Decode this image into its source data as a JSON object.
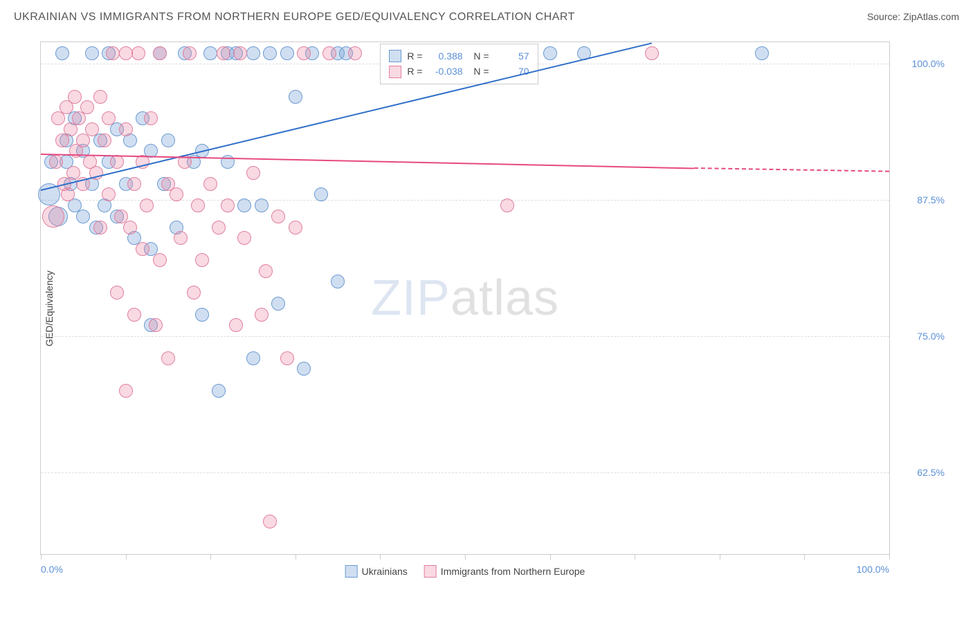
{
  "header": {
    "title": "UKRAINIAN VS IMMIGRANTS FROM NORTHERN EUROPE GED/EQUIVALENCY CORRELATION CHART",
    "source": "Source: ZipAtlas.com"
  },
  "chart": {
    "type": "scatter",
    "y_axis_title": "GED/Equivalency",
    "xlim": [
      0,
      100
    ],
    "ylim": [
      55,
      102
    ],
    "x_ticks": [
      0,
      10,
      20,
      30,
      40,
      50,
      60,
      70,
      80,
      90,
      100
    ],
    "x_tick_labels": {
      "min": "0.0%",
      "max": "100.0%"
    },
    "y_ticks": [
      {
        "value": 62.5,
        "label": "62.5%"
      },
      {
        "value": 75.0,
        "label": "75.0%"
      },
      {
        "value": 87.5,
        "label": "87.5%"
      },
      {
        "value": 100.0,
        "label": "100.0%"
      }
    ],
    "background_color": "#ffffff",
    "grid_color": "#dddddd",
    "border_color": "#cccccc",
    "axis_label_color": "#5b8fd6",
    "watermark": {
      "zip": "ZIP",
      "atlas": "atlas"
    },
    "series": [
      {
        "name": "Ukrainians",
        "fill": "rgba(120,160,215,0.35)",
        "stroke": "#6b9bd1",
        "stroke_width": 1,
        "marker_radius": 10,
        "trend": {
          "color": "#2f6fc9",
          "x1": 0,
          "y1": 88.5,
          "x2": 72,
          "y2": 102,
          "dash_x2": 72,
          "dash_y2": 102
        },
        "stats": {
          "R": "0.388",
          "N": "57"
        },
        "points": [
          {
            "x": 1,
            "y": 88,
            "r": 16
          },
          {
            "x": 1.2,
            "y": 91
          },
          {
            "x": 2,
            "y": 86,
            "r": 14
          },
          {
            "x": 2.5,
            "y": 101
          },
          {
            "x": 3,
            "y": 93
          },
          {
            "x": 3,
            "y": 91
          },
          {
            "x": 3.5,
            "y": 89
          },
          {
            "x": 4,
            "y": 87
          },
          {
            "x": 4,
            "y": 95
          },
          {
            "x": 5,
            "y": 86
          },
          {
            "x": 5,
            "y": 92
          },
          {
            "x": 6,
            "y": 101
          },
          {
            "x": 6,
            "y": 89
          },
          {
            "x": 6.5,
            "y": 85
          },
          {
            "x": 7,
            "y": 93
          },
          {
            "x": 7.5,
            "y": 87
          },
          {
            "x": 8,
            "y": 101
          },
          {
            "x": 8,
            "y": 91
          },
          {
            "x": 9,
            "y": 94
          },
          {
            "x": 9,
            "y": 86
          },
          {
            "x": 10,
            "y": 89
          },
          {
            "x": 10.5,
            "y": 93
          },
          {
            "x": 11,
            "y": 84
          },
          {
            "x": 12,
            "y": 95
          },
          {
            "x": 13,
            "y": 92
          },
          {
            "x": 13,
            "y": 76
          },
          {
            "x": 13,
            "y": 83
          },
          {
            "x": 14,
            "y": 101
          },
          {
            "x": 14.5,
            "y": 89
          },
          {
            "x": 15,
            "y": 93
          },
          {
            "x": 16,
            "y": 85
          },
          {
            "x": 17,
            "y": 101
          },
          {
            "x": 18,
            "y": 91
          },
          {
            "x": 19,
            "y": 92
          },
          {
            "x": 19,
            "y": 77
          },
          {
            "x": 20,
            "y": 101
          },
          {
            "x": 21,
            "y": 70
          },
          {
            "x": 22,
            "y": 91
          },
          {
            "x": 22,
            "y": 101
          },
          {
            "x": 23,
            "y": 101
          },
          {
            "x": 24,
            "y": 87
          },
          {
            "x": 25,
            "y": 101
          },
          {
            "x": 25,
            "y": 73
          },
          {
            "x": 26,
            "y": 87
          },
          {
            "x": 27,
            "y": 101
          },
          {
            "x": 28,
            "y": 78
          },
          {
            "x": 29,
            "y": 101
          },
          {
            "x": 30,
            "y": 97
          },
          {
            "x": 31,
            "y": 72
          },
          {
            "x": 32,
            "y": 101
          },
          {
            "x": 33,
            "y": 88
          },
          {
            "x": 35,
            "y": 80
          },
          {
            "x": 35,
            "y": 101
          },
          {
            "x": 36,
            "y": 101
          },
          {
            "x": 60,
            "y": 101
          },
          {
            "x": 64,
            "y": 101
          },
          {
            "x": 85,
            "y": 101
          }
        ]
      },
      {
        "name": "Immigrants from Northern Europe",
        "fill": "rgba(235,130,160,0.30)",
        "stroke": "#e07fa0",
        "stroke_width": 1,
        "marker_radius": 10,
        "trend": {
          "color": "#e64980",
          "x1": 0,
          "y1": 91.8,
          "x2": 77,
          "y2": 90.5,
          "dash_x2": 100,
          "dash_y2": 90.2
        },
        "stats": {
          "R": "-0.038",
          "N": "70"
        },
        "points": [
          {
            "x": 1.5,
            "y": 86,
            "r": 16
          },
          {
            "x": 1.8,
            "y": 91
          },
          {
            "x": 2,
            "y": 95
          },
          {
            "x": 2.5,
            "y": 93
          },
          {
            "x": 2.8,
            "y": 89
          },
          {
            "x": 3,
            "y": 96
          },
          {
            "x": 3.2,
            "y": 88
          },
          {
            "x": 3.5,
            "y": 94
          },
          {
            "x": 3.8,
            "y": 90
          },
          {
            "x": 4,
            "y": 97
          },
          {
            "x": 4.2,
            "y": 92
          },
          {
            "x": 4.5,
            "y": 95
          },
          {
            "x": 5,
            "y": 93
          },
          {
            "x": 5,
            "y": 89
          },
          {
            "x": 5.5,
            "y": 96
          },
          {
            "x": 5.8,
            "y": 91
          },
          {
            "x": 6,
            "y": 94
          },
          {
            "x": 6.5,
            "y": 90
          },
          {
            "x": 7,
            "y": 97
          },
          {
            "x": 7,
            "y": 85
          },
          {
            "x": 7.5,
            "y": 93
          },
          {
            "x": 8,
            "y": 95
          },
          {
            "x": 8,
            "y": 88
          },
          {
            "x": 8.5,
            "y": 101
          },
          {
            "x": 9,
            "y": 79
          },
          {
            "x": 9,
            "y": 91
          },
          {
            "x": 9.5,
            "y": 86
          },
          {
            "x": 10,
            "y": 94
          },
          {
            "x": 10,
            "y": 101
          },
          {
            "x": 10,
            "y": 70
          },
          {
            "x": 10.5,
            "y": 85
          },
          {
            "x": 11,
            "y": 89
          },
          {
            "x": 11,
            "y": 77
          },
          {
            "x": 11.5,
            "y": 101
          },
          {
            "x": 12,
            "y": 83
          },
          {
            "x": 12,
            "y": 91
          },
          {
            "x": 12.5,
            "y": 87
          },
          {
            "x": 13,
            "y": 95
          },
          {
            "x": 13.5,
            "y": 76
          },
          {
            "x": 14,
            "y": 82
          },
          {
            "x": 14,
            "y": 101
          },
          {
            "x": 15,
            "y": 89
          },
          {
            "x": 15,
            "y": 73
          },
          {
            "x": 16,
            "y": 88
          },
          {
            "x": 16.5,
            "y": 84
          },
          {
            "x": 17,
            "y": 91
          },
          {
            "x": 17.5,
            "y": 101
          },
          {
            "x": 18,
            "y": 79
          },
          {
            "x": 18.5,
            "y": 87
          },
          {
            "x": 19,
            "y": 82
          },
          {
            "x": 20,
            "y": 89
          },
          {
            "x": 21,
            "y": 85
          },
          {
            "x": 21.5,
            "y": 101
          },
          {
            "x": 22,
            "y": 87
          },
          {
            "x": 23,
            "y": 76
          },
          {
            "x": 23.5,
            "y": 101
          },
          {
            "x": 24,
            "y": 84
          },
          {
            "x": 25,
            "y": 90
          },
          {
            "x": 26,
            "y": 77
          },
          {
            "x": 26.5,
            "y": 81
          },
          {
            "x": 27,
            "y": 58
          },
          {
            "x": 28,
            "y": 86
          },
          {
            "x": 29,
            "y": 73
          },
          {
            "x": 30,
            "y": 85
          },
          {
            "x": 31,
            "y": 101
          },
          {
            "x": 34,
            "y": 101
          },
          {
            "x": 37,
            "y": 101
          },
          {
            "x": 47,
            "y": 101
          },
          {
            "x": 55,
            "y": 87
          },
          {
            "x": 72,
            "y": 101
          }
        ]
      }
    ]
  }
}
